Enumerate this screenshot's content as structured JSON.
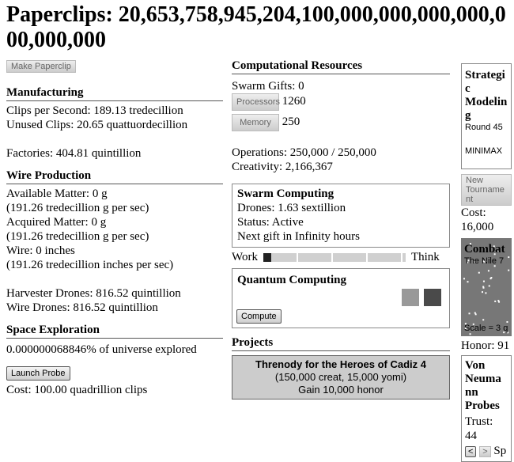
{
  "title": "Paperclips: 20,653,758,945,204,100,000,000,000,000,000,000,000",
  "make_paperclip": "Make Paperclip",
  "manufacturing": {
    "heading": "Manufacturing",
    "clips_per_second": "Clips per Second: 189.13 tredecillion",
    "unused_clips": "Unused Clips: 20.65 quattuordecillion",
    "factories": "Factories: 404.81 quintillion"
  },
  "wire": {
    "heading": "Wire Production",
    "available_matter": "Available Matter: 0 g",
    "available_rate": "(191.26 tredecillion g per sec)",
    "acquired_matter": "Acquired Matter: 0 g",
    "acquired_rate": "(191.26 tredecillion g per sec)",
    "wire": "Wire: 0 inches",
    "wire_rate": "(191.26 tredecillion inches per sec)",
    "harvester": "Harvester Drones: 816.52 quintillion",
    "wire_drones": "Wire Drones: 816.52 quintillion"
  },
  "space": {
    "heading": "Space Exploration",
    "explored": "0.000000068846% of universe explored",
    "launch": "Launch Probe",
    "cost": "Cost: 100.00 quadrillion clips"
  },
  "compute": {
    "heading": "Computational Resources",
    "swarm_gifts": "Swarm Gifts: 0",
    "processors_label": "Processors",
    "processors": "1260",
    "memory_label": "Memory",
    "memory": "250",
    "operations": "Operations: 250,000 / 250,000",
    "creativity": "Creativity: 2,166,367"
  },
  "swarm": {
    "heading": "Swarm Computing",
    "drones": "Drones: 1.63 sextillion",
    "status": "Status: Active",
    "next_gift": "Next gift in Infinity hours",
    "work": "Work",
    "think": "Think",
    "slider_value": 0
  },
  "quantum": {
    "heading": "Quantum Computing",
    "compute": "Compute",
    "chip_colors": [
      "#999999",
      "#4a4a4a"
    ]
  },
  "projects": {
    "heading": "Projects",
    "item": {
      "title": "Threnody for the Heroes of Cadiz 4",
      "cost": "(150,000 creat, 15,000 yomi)",
      "effect": "Gain 10,000 honor"
    }
  },
  "strategic": {
    "heading": "Strategic Modeling",
    "round": "Round 45",
    "strategy": "MINIMAX",
    "new_tournament": "New Tournament",
    "cost": "Cost: 16,000"
  },
  "combat": {
    "heading": "Combat",
    "location": "The Nile 7",
    "scale": "Scale = 3 q",
    "honor": "Honor: 91"
  },
  "von_neumann": {
    "heading": "Von Neumann Probes",
    "trust": "Trust: 44",
    "prev": "<",
    "next": ">",
    "speed": "Sp"
  }
}
